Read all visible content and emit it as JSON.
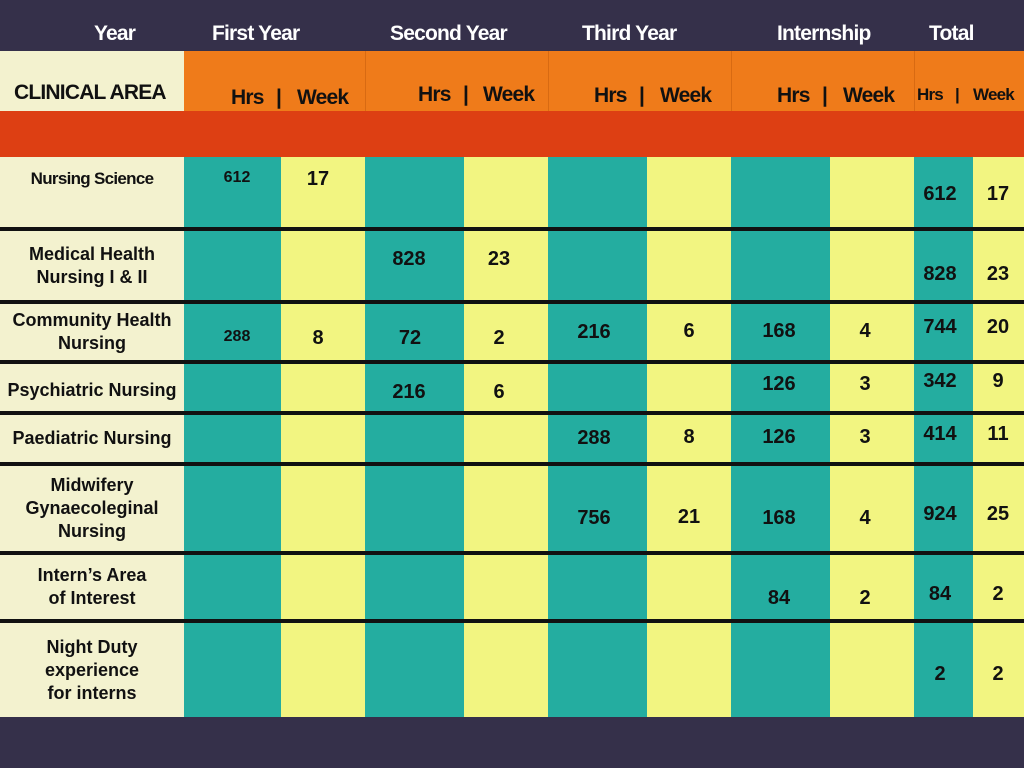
{
  "header": {
    "year_label": "Year",
    "clinical_area_label": "CLINICAL AREA",
    "periods": [
      {
        "label": "First Year",
        "hrs": "Hrs",
        "sep": "|",
        "week": "Week"
      },
      {
        "label": "Second Year",
        "hrs": "Hrs",
        "sep": "|",
        "week": "Week"
      },
      {
        "label": "Third Year",
        "hrs": "Hrs",
        "sep": "|",
        "week": "Week"
      },
      {
        "label": "Internship",
        "hrs": "Hrs",
        "sep": "|",
        "week": "Week"
      },
      {
        "label": "Total",
        "hrs": "Hrs",
        "sep": "|",
        "week": "Week"
      }
    ]
  },
  "colors": {
    "background": "#35304a",
    "orange": "#ef7b1a",
    "red_orange": "#dd3f13",
    "teal": "#24ada0",
    "yellow": "#f2f581",
    "cream": "#f3f2cf"
  },
  "rows": [
    {
      "name": "Nursing Science",
      "cells": [
        "612",
        "17",
        "",
        "",
        "",
        "",
        "",
        "",
        "612",
        "17"
      ]
    },
    {
      "name": "Medical Health\nNursing I & II",
      "cells": [
        "",
        "",
        "828",
        "23",
        "",
        "",
        "",
        "",
        "828",
        "23"
      ]
    },
    {
      "name": "Community Health\nNursing",
      "cells": [
        "288",
        "8",
        "72",
        "2",
        "216",
        "6",
        "168",
        "4",
        "744",
        "20"
      ]
    },
    {
      "name": "Psychiatric Nursing",
      "cells": [
        "",
        "",
        "216",
        "6",
        "",
        "",
        "126",
        "3",
        "342",
        "9"
      ]
    },
    {
      "name": "Paediatric Nursing",
      "cells": [
        "",
        "",
        "",
        "",
        "288",
        "8",
        "126",
        "3",
        "414",
        "11"
      ]
    },
    {
      "name": "Midwifery\nGynaecoleginal\nNursing",
      "cells": [
        "",
        "",
        "",
        "",
        "756",
        "21",
        "168",
        "4",
        "924",
        "25"
      ]
    },
    {
      "name": "Intern’s Area\nof Interest",
      "cells": [
        "",
        "",
        "",
        "",
        "",
        "",
        "84",
        "2",
        "84",
        "2"
      ]
    },
    {
      "name": "Night Duty\nexperience\nfor interns",
      "cells": [
        "",
        "",
        "",
        "",
        "",
        "",
        "",
        "",
        "2",
        "2"
      ]
    }
  ]
}
